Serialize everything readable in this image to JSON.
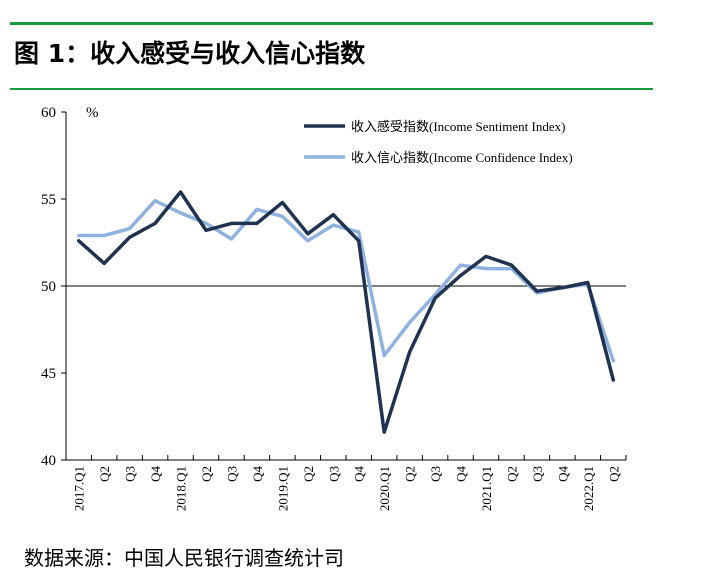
{
  "figure": {
    "title": "图 1：收入感受与收入信心指数",
    "source": "数据来源：中国人民银行调查统计司"
  },
  "colors": {
    "rule": "#1a9a3a",
    "sentiment": "#1f3350",
    "confidence": "#8fb2e0",
    "axis": "#000000"
  },
  "chart_data": {
    "type": "line",
    "unit": "%",
    "ylim": [
      40,
      60
    ],
    "yticks": [
      40,
      45,
      50,
      55,
      60
    ],
    "reference_line": 50,
    "legend_position": "top-right",
    "grid": false,
    "categories": [
      "2017.Q1",
      "Q2",
      "Q3",
      "Q4",
      "2018.Q1",
      "Q2",
      "Q3",
      "Q4",
      "2019.Q1",
      "Q2",
      "Q3",
      "Q4",
      "2020.Q1",
      "Q2",
      "Q3",
      "Q4",
      "2021.Q1",
      "Q2",
      "Q3",
      "Q4",
      "2022.Q1",
      "Q2"
    ],
    "series": [
      {
        "name": "收入感受指数(Income Sentiment Index)",
        "color": "#1f3350",
        "values": [
          52.6,
          51.3,
          52.8,
          53.6,
          55.4,
          53.2,
          53.6,
          53.6,
          54.8,
          53.0,
          54.1,
          52.6,
          41.6,
          46.2,
          49.3,
          50.6,
          51.7,
          51.2,
          49.7,
          49.9,
          50.2,
          44.6
        ]
      },
      {
        "name": "收入信心指数(Income Confidence Index)",
        "color": "#8fb2e0",
        "values": [
          52.9,
          52.9,
          53.3,
          54.9,
          54.2,
          53.6,
          52.7,
          54.4,
          54.0,
          52.6,
          53.5,
          53.1,
          46.0,
          47.9,
          49.5,
          51.2,
          51.0,
          51.0,
          49.6,
          49.9,
          50.1,
          45.7
        ]
      }
    ]
  }
}
